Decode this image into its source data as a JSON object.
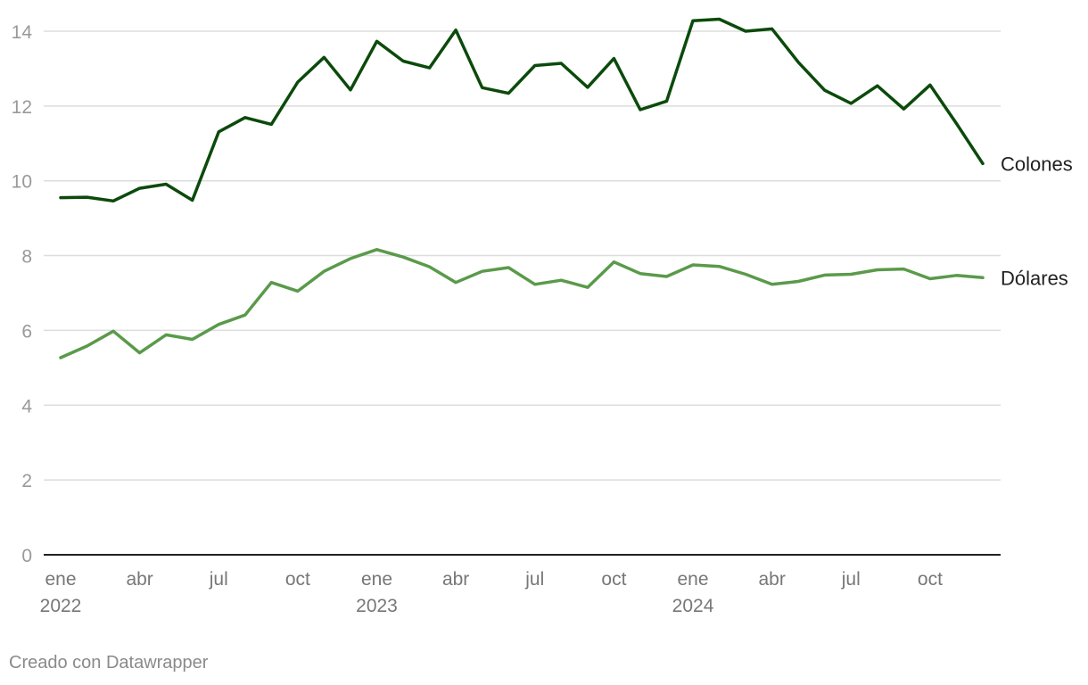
{
  "chart_data": {
    "type": "line",
    "x": [
      "2022-01",
      "2022-02",
      "2022-03",
      "2022-04",
      "2022-05",
      "2022-06",
      "2022-07",
      "2022-08",
      "2022-09",
      "2022-10",
      "2022-11",
      "2022-12",
      "2023-01",
      "2023-02",
      "2023-03",
      "2023-04",
      "2023-05",
      "2023-06",
      "2023-07",
      "2023-08",
      "2023-09",
      "2023-10",
      "2023-11",
      "2023-12",
      "2024-01",
      "2024-02",
      "2024-03",
      "2024-04",
      "2024-05",
      "2024-06",
      "2024-07",
      "2024-08",
      "2024-09",
      "2024-10",
      "2024-11",
      "2024-12"
    ],
    "x_tick_labels": [
      {
        "index": 0,
        "month": "ene",
        "year": "2022"
      },
      {
        "index": 3,
        "month": "abr",
        "year": ""
      },
      {
        "index": 6,
        "month": "jul",
        "year": ""
      },
      {
        "index": 9,
        "month": "oct",
        "year": ""
      },
      {
        "index": 12,
        "month": "ene",
        "year": "2023"
      },
      {
        "index": 15,
        "month": "abr",
        "year": ""
      },
      {
        "index": 18,
        "month": "jul",
        "year": ""
      },
      {
        "index": 21,
        "month": "oct",
        "year": ""
      },
      {
        "index": 24,
        "month": "ene",
        "year": "2024"
      },
      {
        "index": 27,
        "month": "abr",
        "year": ""
      },
      {
        "index": 30,
        "month": "jul",
        "year": ""
      },
      {
        "index": 33,
        "month": "oct",
        "year": ""
      }
    ],
    "series": [
      {
        "name": "Colones",
        "color": "#0b4a0b",
        "values": [
          9.55,
          9.56,
          9.46,
          9.8,
          9.91,
          9.48,
          11.31,
          11.69,
          11.51,
          12.64,
          13.3,
          12.43,
          13.73,
          13.2,
          13.02,
          14.03,
          12.49,
          12.34,
          13.08,
          13.14,
          12.5,
          13.27,
          11.9,
          12.13,
          14.28,
          14.32,
          14.0,
          14.06,
          13.17,
          12.42,
          12.07,
          12.54,
          11.92,
          12.56,
          11.53,
          10.46
        ]
      },
      {
        "name": "Dólares",
        "color": "#5a9a4a",
        "values": [
          5.27,
          5.58,
          5.98,
          5.4,
          5.88,
          5.76,
          6.16,
          6.41,
          7.28,
          7.05,
          7.58,
          7.92,
          8.16,
          7.96,
          7.7,
          7.28,
          7.58,
          7.68,
          7.23,
          7.34,
          7.15,
          7.83,
          7.52,
          7.44,
          7.75,
          7.71,
          7.5,
          7.23,
          7.31,
          7.48,
          7.5,
          7.62,
          7.64,
          7.38,
          7.47,
          7.41
        ]
      }
    ],
    "y_ticks": [
      0,
      2,
      4,
      6,
      8,
      10,
      12,
      14
    ],
    "ylim": [
      0,
      14.5
    ],
    "grid": true,
    "legend": "direct labels at line ends",
    "title": "",
    "xlabel": "",
    "ylabel": ""
  },
  "footer": {
    "credit": "Creado con Datawrapper"
  }
}
